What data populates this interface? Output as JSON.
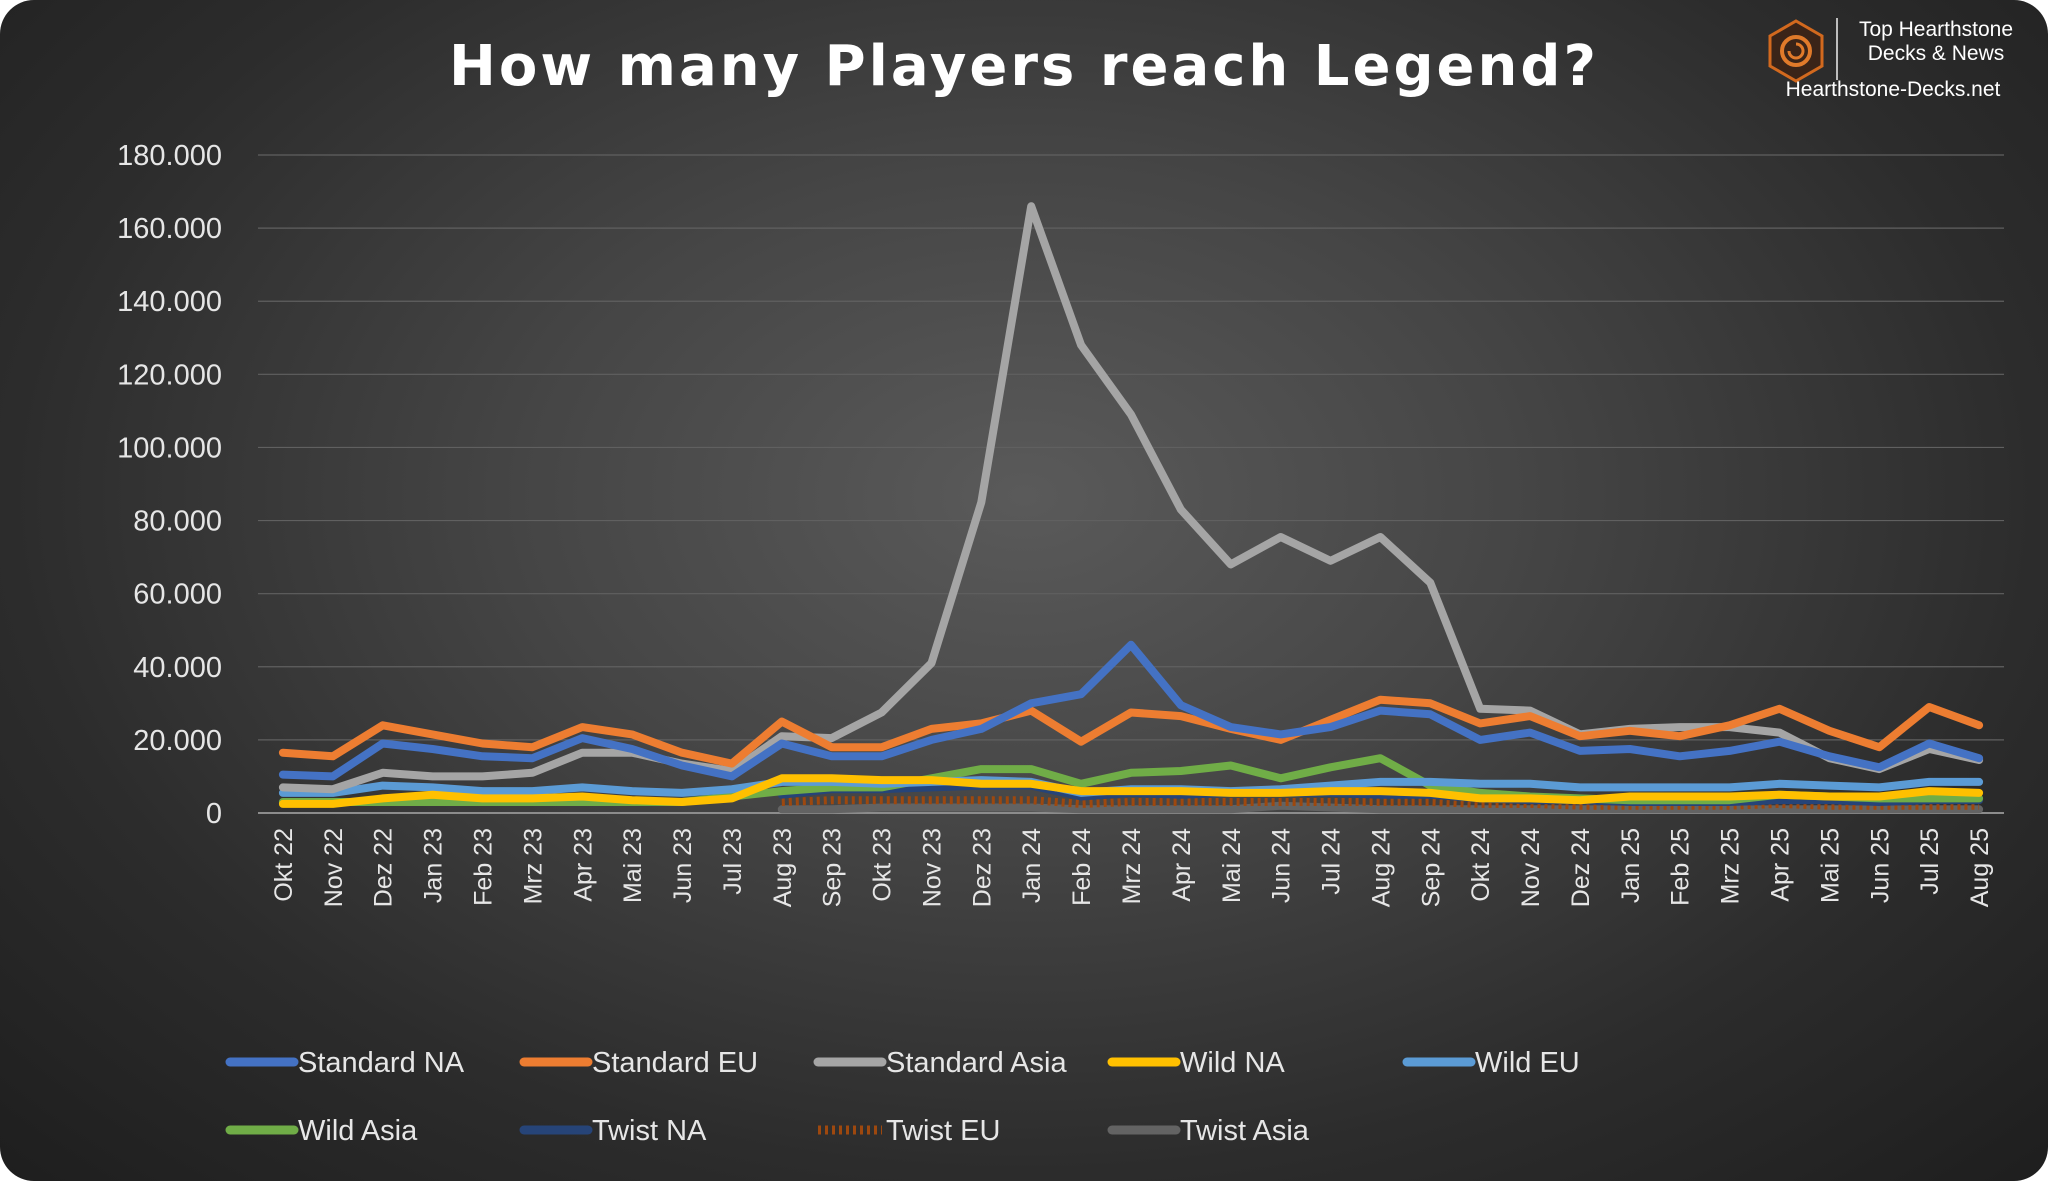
{
  "title": "How many Players reach Legend?",
  "brand": {
    "line1": "Top Hearthstone",
    "line2": "Decks & News",
    "url": "Hearthstone-Decks.net",
    "accent": "#d2691e"
  },
  "chart_data": {
    "type": "line",
    "title": "How many Players reach Legend?",
    "xlabel": "",
    "ylabel": "",
    "ylim": [
      0,
      180000
    ],
    "y_ticks": [
      0,
      20000,
      40000,
      60000,
      80000,
      100000,
      120000,
      140000,
      160000,
      180000
    ],
    "y_tick_labels": [
      "0",
      "20.000",
      "40.000",
      "60.000",
      "80.000",
      "100.000",
      "120.000",
      "140.000",
      "160.000",
      "180.000"
    ],
    "grid": "horizontal",
    "legend_position": "bottom",
    "categories": [
      "Okt 22",
      "Nov 22",
      "Dez 22",
      "Jan 23",
      "Feb 23",
      "Mrz 23",
      "Apr 23",
      "Mai 23",
      "Jun 23",
      "Jul 23",
      "Aug 23",
      "Sep 23",
      "Okt 23",
      "Nov 23",
      "Dez 23",
      "Jan 24",
      "Feb 24",
      "Mrz 24",
      "Apr 24",
      "Mai 24",
      "Jun 24",
      "Jul 24",
      "Aug 24",
      "Sep 24",
      "Okt 24",
      "Nov 24",
      "Dez 24",
      "Jan 25",
      "Feb 25",
      "Mrz 25",
      "Apr 25",
      "Mai 25",
      "Jun 25",
      "Jul 25",
      "Aug 25"
    ],
    "series": [
      {
        "name": "Standard NA",
        "color": "#4472c4",
        "dashed": false,
        "values": [
          10500,
          10000,
          19000,
          17500,
          15500,
          15000,
          20500,
          17500,
          13000,
          10000,
          19000,
          15500,
          15500,
          20000,
          23000,
          30000,
          32500,
          46000,
          29500,
          23500,
          21500,
          23500,
          28000,
          27000,
          20000,
          22000,
          17000,
          17500,
          15500,
          17000,
          19500,
          15500,
          12500,
          19000,
          15000
        ]
      },
      {
        "name": "Standard EU",
        "color": "#ed7d31",
        "dashed": false,
        "values": [
          16500,
          15500,
          24000,
          21500,
          19000,
          18000,
          23500,
          21500,
          16500,
          13500,
          25000,
          18000,
          18000,
          23000,
          24500,
          28000,
          19500,
          27500,
          26500,
          23000,
          20000,
          25500,
          31000,
          30000,
          24500,
          26500,
          21000,
          22500,
          21000,
          24000,
          28500,
          22500,
          18000,
          29000,
          24000
        ]
      },
      {
        "name": "Standard Asia",
        "color": "#a5a5a5",
        "dashed": false,
        "values": [
          7000,
          6500,
          11000,
          10000,
          10000,
          11000,
          16500,
          16500,
          13500,
          11500,
          21000,
          20500,
          27500,
          41000,
          85000,
          166000,
          128000,
          109000,
          83000,
          68000,
          75500,
          69000,
          75500,
          63000,
          28500,
          28000,
          21500,
          23000,
          23500,
          23500,
          22000,
          15000,
          12000,
          17500,
          14500
        ]
      },
      {
        "name": "Wild NA",
        "color": "#ffc000",
        "dashed": false,
        "values": [
          2500,
          2500,
          4000,
          5000,
          4000,
          4000,
          4500,
          3500,
          3000,
          4000,
          9500,
          9500,
          9000,
          9000,
          8000,
          8000,
          6000,
          6000,
          6000,
          5500,
          5500,
          6000,
          6000,
          5500,
          4000,
          4000,
          3500,
          4500,
          4500,
          4500,
          5000,
          4500,
          4500,
          6000,
          5500
        ]
      },
      {
        "name": "Wild EU",
        "color": "#5b9bd5",
        "dashed": false,
        "values": [
          5500,
          5500,
          7500,
          7000,
          6000,
          6000,
          7000,
          6000,
          5500,
          6500,
          8500,
          8500,
          8000,
          8500,
          9000,
          8500,
          5500,
          6500,
          6500,
          6000,
          6500,
          7500,
          8500,
          8500,
          8000,
          8000,
          7000,
          7000,
          7000,
          7000,
          8000,
          7500,
          7000,
          8500,
          8500
        ]
      },
      {
        "name": "Wild Asia",
        "color": "#70ad47",
        "dashed": false,
        "values": [
          3000,
          3000,
          3000,
          3000,
          3000,
          3000,
          3000,
          3000,
          3000,
          4500,
          6000,
          7000,
          7000,
          9500,
          12000,
          12000,
          8000,
          11000,
          11500,
          13000,
          9500,
          12500,
          15000,
          7500,
          5500,
          4500,
          4000,
          3500,
          3500,
          3500,
          5000,
          4500,
          4000,
          4000,
          4000
        ]
      },
      {
        "name": "Twist NA",
        "color": "#264478",
        "dashed": false,
        "values": [
          null,
          null,
          null,
          null,
          null,
          null,
          null,
          null,
          null,
          null,
          5000,
          6500,
          6500,
          7000,
          7500,
          7500,
          4500,
          5500,
          5000,
          5500,
          5500,
          5500,
          5000,
          5000,
          4000,
          3500,
          3500,
          3000,
          3000,
          3000,
          3500,
          3500,
          3000,
          3500,
          3500
        ]
      },
      {
        "name": "Twist EU",
        "color": "#9e480e",
        "dashed": true,
        "values": [
          null,
          null,
          null,
          null,
          null,
          null,
          null,
          null,
          null,
          null,
          3000,
          3500,
          3500,
          3500,
          3500,
          3500,
          2500,
          3000,
          3000,
          3000,
          3000,
          3000,
          3000,
          3000,
          2500,
          2500,
          2000,
          2000,
          2000,
          2000,
          2500,
          2000,
          2000,
          2000,
          2000
        ]
      },
      {
        "name": "Twist Asia",
        "color": "#636363",
        "dashed": false,
        "values": [
          null,
          null,
          null,
          null,
          null,
          null,
          null,
          null,
          null,
          null,
          1000,
          1000,
          1500,
          1500,
          1500,
          1500,
          1000,
          1000,
          1000,
          1000,
          2000,
          1500,
          1000,
          1000,
          1000,
          1000,
          1000,
          1000,
          1000,
          1000,
          1000,
          1000,
          1000,
          1000,
          1000
        ]
      }
    ]
  }
}
